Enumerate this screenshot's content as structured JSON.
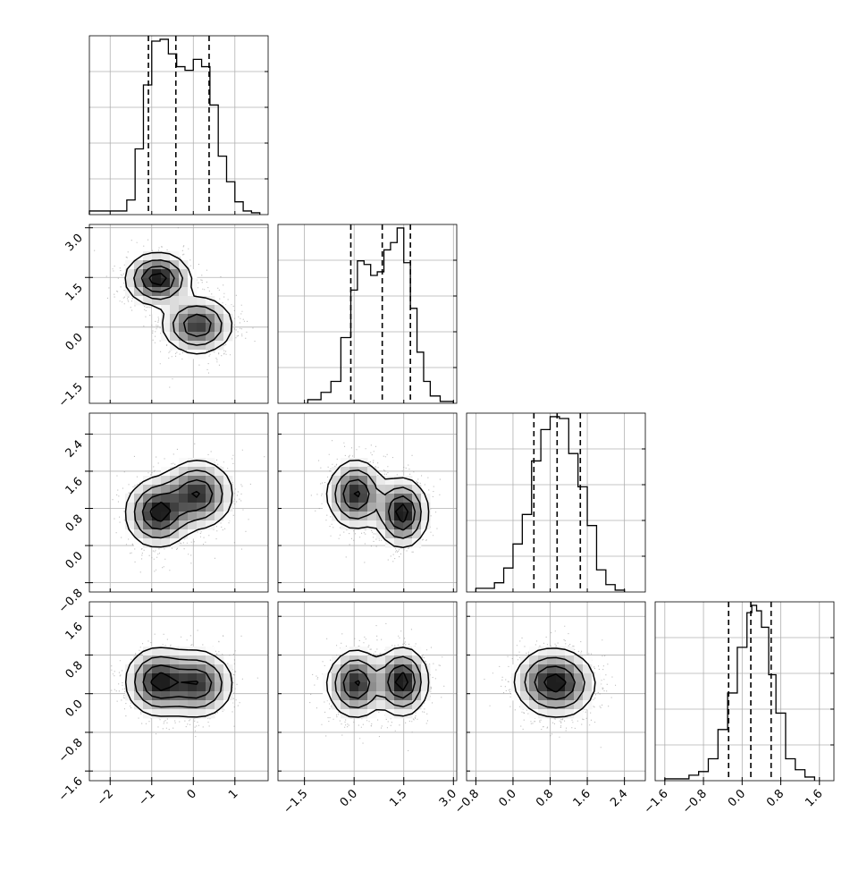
{
  "chart_data": {
    "type": "corner",
    "params": [
      {
        "range": [
          -2.5,
          1.8
        ],
        "ticks": [
          -2,
          -1,
          0,
          1
        ],
        "tick_labels": [
          "−2",
          "−1",
          "0",
          "1"
        ],
        "quantiles": [
          -1.08,
          -0.42,
          0.38
        ],
        "hist_edges": [
          -2.5,
          -1.6,
          -1.4,
          -1.2,
          -1.0,
          -0.8,
          -0.6,
          -0.4,
          -0.2,
          0.0,
          0.2,
          0.4,
          0.6,
          0.8,
          1.0,
          1.2,
          1.4,
          1.6
        ],
        "hist_values": [
          0.02,
          0.08,
          0.36,
          0.71,
          0.95,
          0.96,
          0.88,
          0.81,
          0.79,
          0.85,
          0.81,
          0.6,
          0.32,
          0.18,
          0.07,
          0.02,
          0.01
        ]
      },
      {
        "range": [
          -2.3,
          3.1
        ],
        "ticks": [
          -1.5,
          0.0,
          1.5,
          3.0
        ],
        "tick_labels": [
          "−1.5",
          "0.0",
          "1.5",
          "3.0"
        ],
        "quantiles": [
          -0.1,
          0.85,
          1.7
        ],
        "hist_edges": [
          -1.4,
          -1.0,
          -0.7,
          -0.4,
          -0.1,
          0.1,
          0.3,
          0.5,
          0.7,
          0.9,
          1.1,
          1.3,
          1.5,
          1.7,
          1.9,
          2.1,
          2.3,
          2.6,
          3.0
        ],
        "hist_values": [
          0.02,
          0.06,
          0.12,
          0.36,
          0.62,
          0.78,
          0.76,
          0.7,
          0.72,
          0.84,
          0.88,
          0.96,
          0.77,
          0.52,
          0.28,
          0.12,
          0.04,
          0.01
        ]
      },
      {
        "range": [
          -1.0,
          2.85
        ],
        "ticks": [
          -0.8,
          0.0,
          0.8,
          1.6,
          2.4
        ],
        "tick_labels": [
          "−0.8",
          "0.0",
          "0.8",
          "1.6",
          "2.4"
        ],
        "quantiles": [
          0.45,
          0.95,
          1.45
        ],
        "hist_edges": [
          -0.8,
          -0.4,
          -0.2,
          0.0,
          0.2,
          0.4,
          0.6,
          0.8,
          1.0,
          1.2,
          1.4,
          1.6,
          1.8,
          2.0,
          2.2,
          2.4
        ],
        "hist_values": [
          0.02,
          0.05,
          0.13,
          0.26,
          0.42,
          0.71,
          0.88,
          0.95,
          0.94,
          0.75,
          0.57,
          0.36,
          0.12,
          0.04,
          0.01
        ]
      },
      {
        "range": [
          -1.8,
          1.9
        ],
        "ticks": [
          -1.6,
          -0.8,
          0.0,
          0.8,
          1.6
        ],
        "tick_labels": [
          "−1.6",
          "−0.8",
          "0.0",
          "0.8",
          "1.6"
        ],
        "quantiles": [
          -0.28,
          0.18,
          0.6
        ],
        "hist_edges": [
          -1.6,
          -1.1,
          -0.9,
          -0.7,
          -0.5,
          -0.3,
          -0.1,
          0.1,
          0.2,
          0.3,
          0.4,
          0.55,
          0.7,
          0.9,
          1.1,
          1.3,
          1.5
        ],
        "hist_values": [
          0.01,
          0.03,
          0.05,
          0.12,
          0.28,
          0.48,
          0.73,
          0.92,
          0.96,
          0.93,
          0.84,
          0.58,
          0.37,
          0.12,
          0.06,
          0.02
        ]
      }
    ],
    "mixture": [
      {
        "weight": 0.5,
        "mean": [
          -0.85,
          1.45,
          0.7,
          0.25
        ],
        "sd": [
          0.38,
          0.38,
          0.36,
          0.34
        ]
      },
      {
        "weight": 0.5,
        "mean": [
          0.1,
          0.05,
          1.1,
          0.2
        ],
        "sd": [
          0.42,
          0.42,
          0.36,
          0.34
        ]
      }
    ],
    "grid": true,
    "scatter_points_per_panel": 1800
  }
}
